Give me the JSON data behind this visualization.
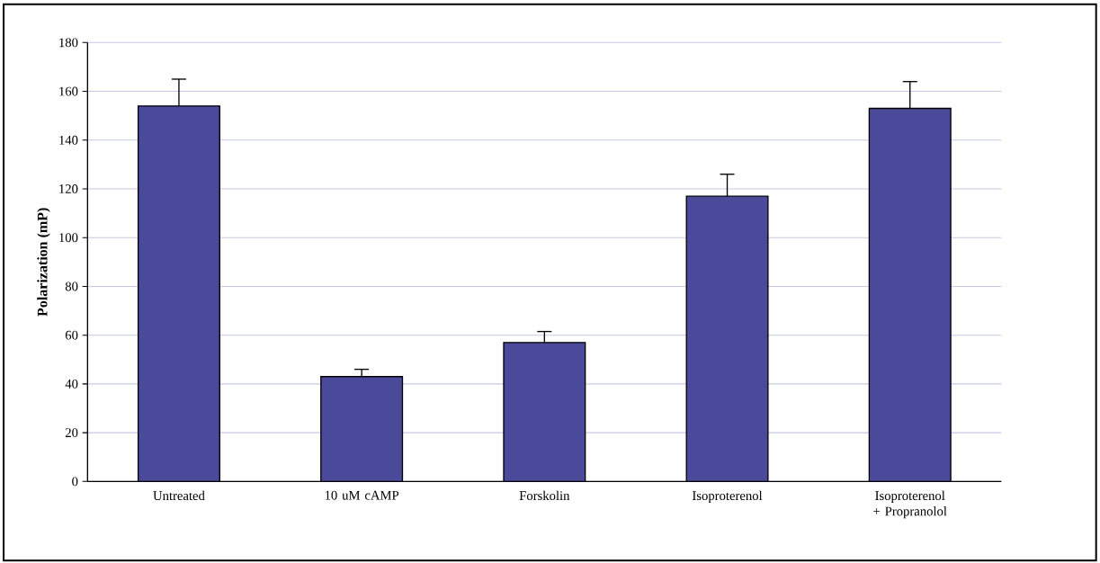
{
  "chart_data": {
    "type": "bar",
    "ylabel": "Polarization (mP)",
    "categories": [
      "Untreated",
      "10 uM cAMP",
      "Forskolin",
      "Isoproterenol",
      "Isoproterenol + Propranolol"
    ],
    "values": [
      154,
      43,
      57,
      117,
      153
    ],
    "errors": [
      [
        154,
        165
      ],
      [
        43,
        46
      ],
      [
        57,
        61.5
      ],
      [
        117,
        126
      ],
      [
        153,
        164
      ]
    ],
    "color": "#4b4a9a",
    "ylim": [
      0,
      180
    ],
    "yticks": [
      0,
      20,
      40,
      60,
      80,
      100,
      120,
      140,
      160,
      180
    ],
    "grid": "y"
  }
}
